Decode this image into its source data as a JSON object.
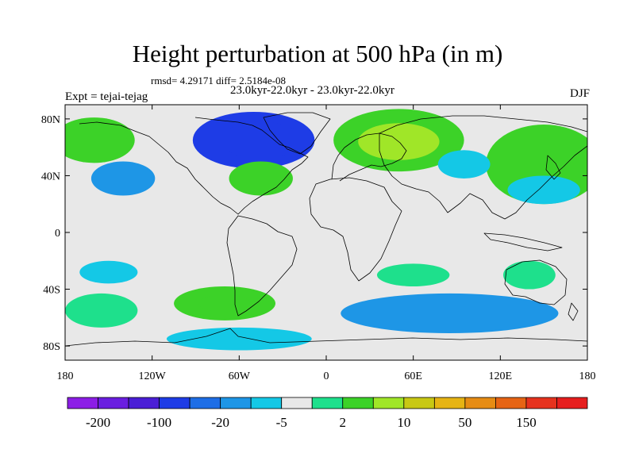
{
  "chart_data": {
    "type": "heatmap",
    "title": "Height perturbation at 500 hPa (in m)",
    "stats": "rmsd= 4.29171 diff= 2.5184e-08",
    "experiment": "Expt = tejai-tejag",
    "periods": "23.0kyr-22.0kyr - 23.0kyr-22.0kyr",
    "season": "DJF",
    "x_ticks": [
      "180",
      "120W",
      "60W",
      "0",
      "60E",
      "120E",
      "180"
    ],
    "x_values": [
      -180,
      -120,
      -60,
      0,
      60,
      120,
      180
    ],
    "y_ticks": [
      "80N",
      "40N",
      "0",
      "40S",
      "80S"
    ],
    "y_values": [
      80,
      40,
      0,
      -40,
      -80
    ],
    "xlim": [
      -180,
      180
    ],
    "ylim": [
      -90,
      90
    ],
    "colorbar": {
      "colors": [
        "#8c1ee6",
        "#6a1ee0",
        "#4a1ed6",
        "#1e3ce6",
        "#1e6ee6",
        "#1e96e6",
        "#14c8e6",
        "#e8e8e8",
        "#1ee08c",
        "#3cd228",
        "#a0e628",
        "#c8c814",
        "#e6b414",
        "#e68c14",
        "#e66414",
        "#e6321e",
        "#e61e1e"
      ],
      "labels": [
        "-200",
        "-100",
        "-20",
        "-5",
        "2",
        "10",
        "50",
        "150"
      ],
      "label_bins": [
        1,
        3,
        5,
        7,
        9,
        11,
        13,
        15
      ]
    },
    "anomaly_regions": [
      {
        "name": "north-atlantic-low",
        "lon": -50,
        "lat": 65,
        "lon_radius": 42,
        "lat_radius": 20,
        "level": -20
      },
      {
        "name": "north-atlantic-low-core",
        "lon": -45,
        "lat": 65,
        "lon_radius": 28,
        "lat_radius": 13,
        "level": -30
      },
      {
        "name": "eurasia-high",
        "lon": 50,
        "lat": 65,
        "lon_radius": 45,
        "lat_radius": 22,
        "level": 8
      },
      {
        "name": "eurasia-high-core",
        "lon": 50,
        "lat": 64,
        "lon_radius": 28,
        "lat_radius": 13,
        "level": 12
      },
      {
        "name": "north-pacific-high",
        "lon": -160,
        "lat": 65,
        "lon_radius": 28,
        "lat_radius": 16,
        "level": 6
      },
      {
        "name": "pacific-rim-high",
        "lon": 150,
        "lat": 48,
        "lon_radius": 40,
        "lat_radius": 28,
        "level": 6
      },
      {
        "name": "east-pacific-low",
        "lon": -140,
        "lat": 38,
        "lon_radius": 22,
        "lat_radius": 12,
        "level": -5
      },
      {
        "name": "atlantic-high",
        "lon": -45,
        "lat": 38,
        "lon_radius": 22,
        "lat_radius": 12,
        "level": 6
      },
      {
        "name": "east-asia-low",
        "lon": 95,
        "lat": 48,
        "lon_radius": 18,
        "lat_radius": 10,
        "level": -4
      },
      {
        "name": "west-pacific-low",
        "lon": 150,
        "lat": 30,
        "lon_radius": 25,
        "lat_radius": 10,
        "level": -4
      },
      {
        "name": "south-pacific-low",
        "lon": -150,
        "lat": -28,
        "lon_radius": 20,
        "lat_radius": 8,
        "level": -4
      },
      {
        "name": "southwest-pacific-high",
        "lon": -155,
        "lat": -55,
        "lon_radius": 25,
        "lat_radius": 12,
        "level": 4
      },
      {
        "name": "south-america-high",
        "lon": -70,
        "lat": -50,
        "lon_radius": 35,
        "lat_radius": 12,
        "level": 5
      },
      {
        "name": "patagonia-high-core",
        "lon": -70,
        "lat": -50,
        "lon_radius": 18,
        "lat_radius": 6,
        "level": 8
      },
      {
        "name": "southern-ocean-low",
        "lon": 85,
        "lat": -57,
        "lon_radius": 75,
        "lat_radius": 14,
        "level": -5
      },
      {
        "name": "indian-ocean-high",
        "lon": 60,
        "lat": -30,
        "lon_radius": 25,
        "lat_radius": 8,
        "level": 4
      },
      {
        "name": "australia-high",
        "lon": 140,
        "lat": -30,
        "lon_radius": 18,
        "lat_radius": 10,
        "level": 4
      },
      {
        "name": "antarctic-low",
        "lon": -60,
        "lat": -75,
        "lon_radius": 50,
        "lat_radius": 8,
        "level": -4
      }
    ]
  }
}
